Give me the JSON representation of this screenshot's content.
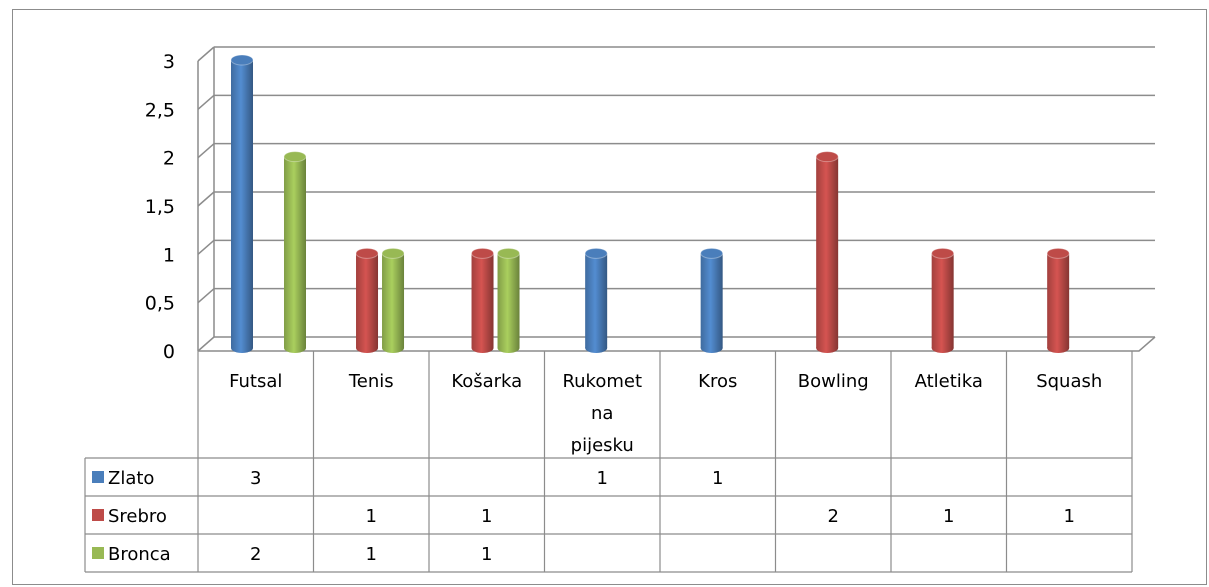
{
  "chart_data": {
    "type": "bar",
    "title": "",
    "xlabel": "",
    "ylabel": "",
    "ylim": [
      0,
      3
    ],
    "yticks": [
      "0",
      "0,5",
      "1",
      "1,5",
      "2",
      "2,5",
      "3"
    ],
    "grid": true,
    "legend": "data-table",
    "categories": [
      "Futsal",
      "Tenis",
      "Košarka",
      "Rukomet na pijesku",
      "Kros",
      "Bowling",
      "Atletika",
      "Squash"
    ],
    "category_lines": [
      [
        "Futsal"
      ],
      [
        "Tenis"
      ],
      [
        "Košarka"
      ],
      [
        "Rukomet",
        "na",
        "pijesku"
      ],
      [
        "Kros"
      ],
      [
        "Bowling"
      ],
      [
        "Atletika"
      ],
      [
        "Squash"
      ]
    ],
    "series": [
      {
        "name": "Zlato",
        "color": "#4a7ebb",
        "values": [
          3,
          null,
          null,
          1,
          1,
          null,
          null,
          null
        ]
      },
      {
        "name": "Srebro",
        "color": "#be4b48",
        "values": [
          null,
          1,
          1,
          null,
          null,
          2,
          1,
          1
        ]
      },
      {
        "name": "Bronca",
        "color": "#98b954",
        "values": [
          2,
          1,
          1,
          null,
          null,
          null,
          null,
          null
        ]
      }
    ]
  }
}
